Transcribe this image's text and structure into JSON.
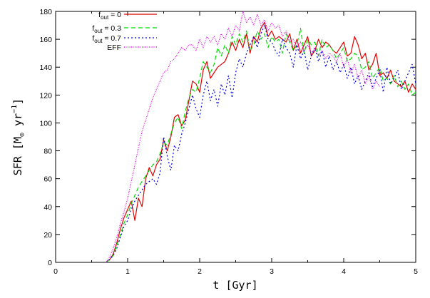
{
  "chart_data": {
    "type": "line",
    "xlabel": "t  [Gyr]",
    "ylabel_main": "SFR  [M",
    "ylabel_sub": "⊙",
    "ylabel_mid": " yr",
    "ylabel_sup": "−1",
    "ylabel_end": "]",
    "xlim": [
      0,
      5
    ],
    "ylim": [
      0,
      180
    ],
    "xticks": [
      "0",
      "1",
      "2",
      "3",
      "4",
      "5"
    ],
    "yticks": [
      "0",
      "20",
      "40",
      "60",
      "80",
      "100",
      "120",
      "140",
      "160",
      "180"
    ],
    "grid": false,
    "legend_position": "top-left",
    "series": [
      {
        "name_main": "f",
        "name_sub": "out",
        "name_rest": " = 0",
        "color": "#e00000",
        "dash": "",
        "x": [
          0.7,
          0.75,
          0.8,
          0.85,
          0.9,
          0.95,
          1.0,
          1.05,
          1.1,
          1.15,
          1.2,
          1.25,
          1.3,
          1.35,
          1.4,
          1.45,
          1.5,
          1.55,
          1.6,
          1.65,
          1.7,
          1.75,
          1.8,
          1.85,
          1.9,
          1.95,
          2.0,
          2.05,
          2.1,
          2.15,
          2.2,
          2.25,
          2.3,
          2.35,
          2.4,
          2.45,
          2.5,
          2.55,
          2.6,
          2.65,
          2.7,
          2.75,
          2.8,
          2.85,
          2.9,
          2.95,
          3.0,
          3.05,
          3.1,
          3.15,
          3.2,
          3.25,
          3.3,
          3.35,
          3.4,
          3.45,
          3.5,
          3.55,
          3.6,
          3.65,
          3.7,
          3.75,
          3.8,
          3.85,
          3.9,
          3.95,
          4.0,
          4.05,
          4.1,
          4.15,
          4.2,
          4.25,
          4.3,
          4.35,
          4.4,
          4.45,
          4.5,
          4.55,
          4.6,
          4.65,
          4.7,
          4.75,
          4.8,
          4.85,
          4.9,
          4.95,
          5.0
        ],
        "values": [
          0,
          2,
          6,
          14,
          24,
          32,
          38,
          44,
          30,
          46,
          40,
          60,
          68,
          62,
          70,
          74,
          88,
          80,
          90,
          104,
          106,
          98,
          102,
          116,
          130,
          128,
          122,
          138,
          144,
          132,
          136,
          140,
          142,
          144,
          150,
          158,
          152,
          160,
          154,
          164,
          150,
          162,
          158,
          168,
          172,
          162,
          166,
          160,
          162,
          160,
          158,
          164,
          152,
          160,
          150,
          156,
          162,
          148,
          152,
          160,
          154,
          158,
          156,
          152,
          150,
          154,
          158,
          148,
          150,
          162,
          156,
          146,
          150,
          138,
          142,
          150,
          134,
          136,
          132,
          138,
          130,
          128,
          126,
          130,
          122,
          128,
          124
        ]
      },
      {
        "name_main": "f",
        "name_sub": "out",
        "name_rest": " = 0.3",
        "color": "#00e000",
        "dash": "6,4",
        "x": [
          0.7,
          0.75,
          0.8,
          0.85,
          0.9,
          0.95,
          1.0,
          1.05,
          1.1,
          1.15,
          1.2,
          1.25,
          1.3,
          1.35,
          1.4,
          1.45,
          1.5,
          1.55,
          1.6,
          1.65,
          1.7,
          1.75,
          1.8,
          1.85,
          1.9,
          1.95,
          2.0,
          2.05,
          2.1,
          2.15,
          2.2,
          2.25,
          2.3,
          2.35,
          2.4,
          2.45,
          2.5,
          2.55,
          2.6,
          2.65,
          2.7,
          2.75,
          2.8,
          2.85,
          2.9,
          2.95,
          3.0,
          3.05,
          3.1,
          3.15,
          3.2,
          3.25,
          3.3,
          3.35,
          3.4,
          3.45,
          3.5,
          3.55,
          3.6,
          3.65,
          3.7,
          3.75,
          3.8,
          3.85,
          3.9,
          3.95,
          4.0,
          4.05,
          4.1,
          4.15,
          4.2,
          4.25,
          4.3,
          4.35,
          4.4,
          4.45,
          4.5,
          4.55,
          4.6,
          4.65,
          4.7,
          4.75,
          4.8,
          4.85,
          4.9,
          4.95,
          5.0
        ],
        "values": [
          0,
          2,
          5,
          12,
          20,
          28,
          34,
          42,
          48,
          54,
          58,
          62,
          66,
          70,
          72,
          78,
          86,
          84,
          92,
          100,
          104,
          96,
          108,
          118,
          124,
          122,
          132,
          144,
          140,
          136,
          142,
          154,
          148,
          156,
          150,
          162,
          156,
          164,
          158,
          166,
          152,
          156,
          166,
          160,
          164,
          154,
          162,
          158,
          160,
          150,
          164,
          158,
          152,
          156,
          168,
          150,
          160,
          156,
          158,
          148,
          160,
          154,
          156,
          152,
          146,
          150,
          154,
          144,
          146,
          150,
          148,
          138,
          140,
          144,
          132,
          136,
          140,
          130,
          132,
          128,
          134,
          126,
          130,
          124,
          128,
          120,
          122
        ]
      },
      {
        "name_main": "f",
        "name_sub": "out",
        "name_rest": " = 0.7",
        "color": "#0000e0",
        "dash": "2,3",
        "x": [
          0.7,
          0.75,
          0.8,
          0.85,
          0.9,
          0.95,
          1.0,
          1.05,
          1.1,
          1.15,
          1.2,
          1.25,
          1.3,
          1.35,
          1.4,
          1.45,
          1.5,
          1.55,
          1.6,
          1.65,
          1.7,
          1.75,
          1.8,
          1.85,
          1.9,
          1.95,
          2.0,
          2.05,
          2.1,
          2.15,
          2.2,
          2.25,
          2.3,
          2.35,
          2.4,
          2.45,
          2.5,
          2.55,
          2.6,
          2.65,
          2.7,
          2.75,
          2.8,
          2.85,
          2.9,
          2.95,
          3.0,
          3.05,
          3.1,
          3.15,
          3.2,
          3.25,
          3.3,
          3.35,
          3.4,
          3.45,
          3.5,
          3.55,
          3.6,
          3.65,
          3.7,
          3.75,
          3.8,
          3.85,
          3.9,
          3.95,
          4.0,
          4.05,
          4.1,
          4.15,
          4.2,
          4.25,
          4.3,
          4.35,
          4.4,
          4.45,
          4.5,
          4.55,
          4.6,
          4.65,
          4.7,
          4.75,
          4.8,
          4.85,
          4.9,
          4.95,
          5.0
        ],
        "values": [
          0,
          2,
          5,
          10,
          18,
          26,
          30,
          38,
          44,
          48,
          52,
          56,
          58,
          60,
          56,
          64,
          90,
          76,
          66,
          84,
          80,
          92,
          100,
          110,
          120,
          110,
          104,
          120,
          130,
          116,
          124,
          112,
          128,
          120,
          134,
          118,
          136,
          146,
          140,
          150,
          156,
          162,
          154,
          164,
          170,
          160,
          158,
          152,
          148,
          160,
          154,
          150,
          140,
          156,
          146,
          152,
          138,
          148,
          154,
          144,
          152,
          140,
          148,
          138,
          144,
          136,
          142,
          132,
          140,
          128,
          134,
          124,
          130,
          136,
          126,
          132,
          138,
          122,
          140,
          128,
          132,
          138,
          124,
          130,
          136,
          142,
          128
        ]
      },
      {
        "name_main": "EFF",
        "name_sub": "",
        "name_rest": "",
        "color": "#e000e0",
        "dash": "1,1.5",
        "x": [
          0.7,
          0.75,
          0.8,
          0.85,
          0.9,
          0.95,
          1.0,
          1.05,
          1.1,
          1.15,
          1.2,
          1.25,
          1.3,
          1.35,
          1.4,
          1.45,
          1.5,
          1.55,
          1.6,
          1.65,
          1.7,
          1.75,
          1.8,
          1.85,
          1.9,
          1.95,
          2.0,
          2.05,
          2.1,
          2.15,
          2.2,
          2.25,
          2.3,
          2.35,
          2.4,
          2.45,
          2.5,
          2.55,
          2.6,
          2.65,
          2.7,
          2.75,
          2.8,
          2.85,
          2.9,
          2.95,
          3.0,
          3.05,
          3.1,
          3.15,
          3.2,
          3.25,
          3.3,
          3.35,
          3.4,
          3.45,
          3.5,
          3.55,
          3.6,
          3.65,
          3.7,
          3.75,
          3.8,
          3.85,
          3.9,
          3.95,
          4.0,
          4.05,
          4.1,
          4.15,
          4.2,
          4.25,
          4.3,
          4.35,
          4.4,
          4.45,
          4.5
        ],
        "values": [
          0,
          4,
          10,
          18,
          28,
          36,
          46,
          58,
          70,
          82,
          94,
          102,
          110,
          118,
          124,
          130,
          136,
          138,
          144,
          146,
          150,
          154,
          152,
          156,
          156,
          152,
          160,
          154,
          162,
          158,
          162,
          156,
          164,
          160,
          168,
          162,
          170,
          166,
          180,
          172,
          176,
          170,
          178,
          170,
          174,
          166,
          172,
          168,
          170,
          162,
          166,
          158,
          160,
          154,
          158,
          152,
          156,
          150,
          154,
          148,
          152,
          146,
          150,
          148,
          144,
          150,
          140,
          146,
          136,
          142,
          132,
          138,
          128,
          134,
          124,
          130,
          126
        ]
      }
    ]
  }
}
